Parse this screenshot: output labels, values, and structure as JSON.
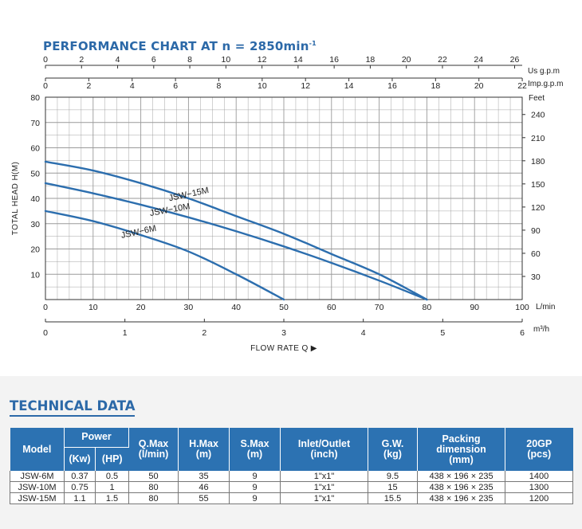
{
  "chart": {
    "title": "PERFORMANCE CHART AT n = 2850min",
    "title_sup": "-1",
    "top_unit_1": "Us g.p.m",
    "top_unit_2": "Imp.g.p.m",
    "right_unit": "Feet",
    "bottom_unit_1": "L/min",
    "bottom_unit_2": "m³/h",
    "ylabel": "TOTAL HEAD H(M)",
    "xlabel": "FLOW RATE Q ▶",
    "usgpm_ticks": [
      "0",
      "2",
      "4",
      "6",
      "8",
      "10",
      "12",
      "14",
      "16",
      "18",
      "20",
      "22",
      "24",
      "26"
    ],
    "impgpm_ticks": [
      "0",
      "2",
      "4",
      "6",
      "8",
      "10",
      "12",
      "14",
      "16",
      "18",
      "20",
      "22"
    ],
    "lmin_ticks": [
      "0",
      "10",
      "20",
      "30",
      "40",
      "50",
      "60",
      "70",
      "80",
      "90",
      "100"
    ],
    "m3h_ticks": [
      "0",
      "1",
      "2",
      "3",
      "4",
      "5",
      "6"
    ],
    "head_m_ticks": [
      "10",
      "20",
      "30",
      "40",
      "50",
      "60",
      "70",
      "80"
    ],
    "head_ft_ticks": [
      "30",
      "60",
      "90",
      "120",
      "150",
      "180",
      "210",
      "240"
    ],
    "colors": {
      "accent": "#2c69a8",
      "curve": "#2c6eae",
      "grid": "#9a9a9a"
    }
  },
  "chart_data": {
    "type": "line",
    "xlabel": "FLOW RATE Q",
    "ylabel": "TOTAL HEAD H(M)",
    "x_unit": "L/min",
    "xlim": [
      0,
      100
    ],
    "ylim": [
      0,
      80
    ],
    "series": [
      {
        "name": "JSW-15M",
        "x": [
          0,
          10,
          20,
          30,
          40,
          50,
          60,
          70,
          80
        ],
        "y": [
          54.5,
          51,
          46,
          40,
          33,
          26,
          18,
          10,
          0
        ]
      },
      {
        "name": "JSW-10M",
        "x": [
          0,
          10,
          20,
          30,
          40,
          50,
          60,
          70,
          80
        ],
        "y": [
          46,
          42,
          37.5,
          32.5,
          27,
          21,
          14.5,
          7.5,
          0
        ]
      },
      {
        "name": "JSW-6M",
        "x": [
          0,
          10,
          20,
          30,
          40,
          50
        ],
        "y": [
          35,
          31,
          25.5,
          19,
          10,
          0
        ]
      }
    ]
  },
  "tech": {
    "title": "TECHNICAL DATA",
    "headers": {
      "model": "Model",
      "power": "Power",
      "kw": "(Kw)",
      "hp": "(HP)",
      "qmax": "Q.Max",
      "qmax_unit": "(l/min)",
      "hmax": "H.Max",
      "hmax_unit": "(m)",
      "smax": "S.Max",
      "smax_unit": "(m)",
      "inlet": "Inlet/Outlet",
      "inlet_unit": "(inch)",
      "gw": "G.W.",
      "gw_unit": "(kg)",
      "packing_1": "Packing",
      "packing_2": "dimension",
      "packing_unit": "(mm)",
      "gp": "20GP",
      "gp_unit": "(pcs)"
    },
    "rows": [
      [
        "JSW-6M",
        "0.37",
        "0.5",
        "50",
        "35",
        "9",
        "1\"x1\"",
        "9.5",
        "438 × 196 × 235",
        "1400"
      ],
      [
        "JSW-10M",
        "0.75",
        "1",
        "80",
        "46",
        "9",
        "1\"x1\"",
        "15",
        "438 × 196 × 235",
        "1300"
      ],
      [
        "JSW-15M",
        "1.1",
        "1.5",
        "80",
        "55",
        "9",
        "1\"x1\"",
        "15.5",
        "438 × 196 × 235",
        "1200"
      ]
    ]
  }
}
